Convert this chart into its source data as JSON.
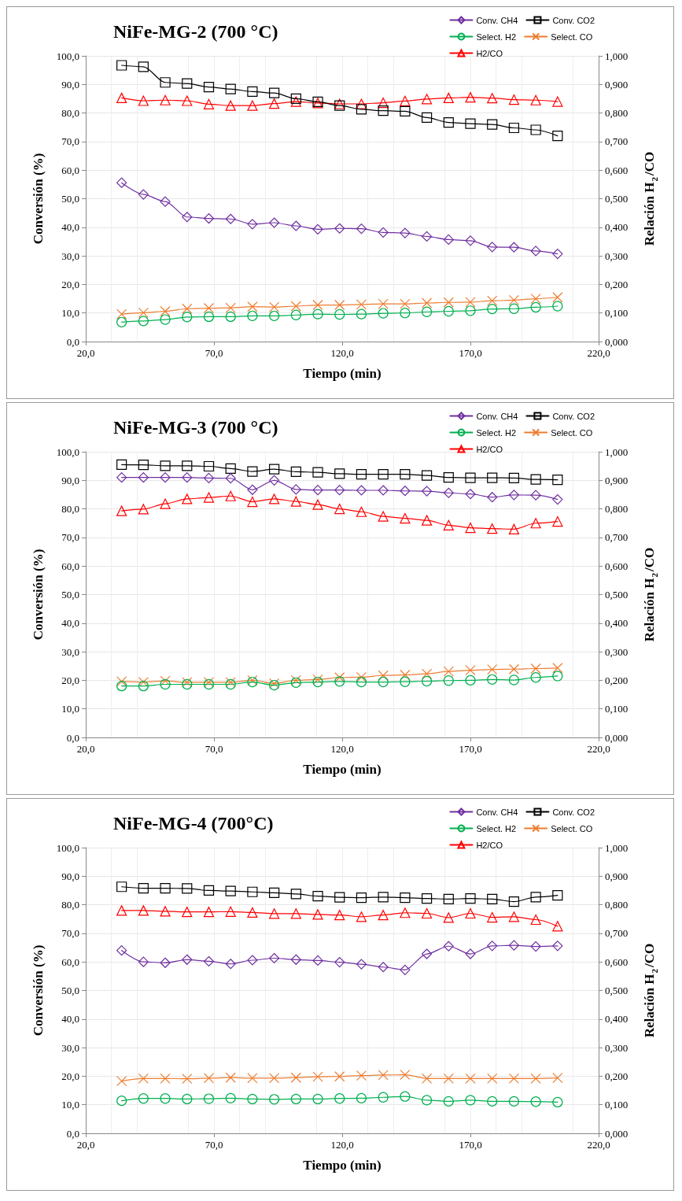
{
  "chart_data": [
    {
      "type": "line",
      "title": "NiFe-MG-2 (700 °C)",
      "xlabel": "Tiempo (min)",
      "ylabel": "Conversión (%)",
      "y2label": "Relación H$_{2}$/CO",
      "legend": "top right",
      "grid": true,
      "line_style": "solid",
      "x": [
        34,
        42.5,
        51,
        59.5,
        68,
        76.5,
        85,
        93.5,
        102,
        110.5,
        119,
        127.5,
        136,
        144.5,
        153,
        161.5,
        170,
        178.5,
        187,
        195.5,
        204
      ],
      "xlim": [
        20,
        220
      ],
      "xticks": [
        {
          "value": 20,
          "label": "20,0"
        },
        {
          "value": 70,
          "label": "70,0"
        },
        {
          "value": 120,
          "label": "120,0"
        },
        {
          "value": 170,
          "label": "170,0"
        },
        {
          "value": 220,
          "label": "220,0"
        }
      ],
      "ylim": [
        0,
        100
      ],
      "yticks": [
        {
          "value": 0,
          "label": "0,0"
        },
        {
          "value": 10,
          "label": "10,0"
        },
        {
          "value": 20,
          "label": "20,0"
        },
        {
          "value": 30,
          "label": "30,0"
        },
        {
          "value": 40,
          "label": "40,0"
        },
        {
          "value": 50,
          "label": "50,0"
        },
        {
          "value": 60,
          "label": "60,0"
        },
        {
          "value": 70,
          "label": "70,0"
        },
        {
          "value": 80,
          "label": "80,0"
        },
        {
          "value": 90,
          "label": "90,0"
        },
        {
          "value": 100,
          "label": "100,0"
        }
      ],
      "y2lim": [
        0,
        1
      ],
      "y2ticks": [
        {
          "value": 0,
          "label": "0,000"
        },
        {
          "value": 0.1,
          "label": "0,100"
        },
        {
          "value": 0.2,
          "label": "0,200"
        },
        {
          "value": 0.3,
          "label": "0,300"
        },
        {
          "value": 0.4,
          "label": "0,400"
        },
        {
          "value": 0.5,
          "label": "0,500"
        },
        {
          "value": 0.6,
          "label": "0,600"
        },
        {
          "value": 0.7,
          "label": "0,700"
        },
        {
          "value": 0.8,
          "label": "0,800"
        },
        {
          "value": 0.9,
          "label": "0,900"
        },
        {
          "value": 1,
          "label": "1,000"
        }
      ],
      "series": [
        {
          "name": "Conv. CH4",
          "color": "#7030a0",
          "marker": "diamond",
          "values": [
            55.6,
            51.5,
            49.0,
            43.6,
            43.1,
            42.9,
            41.1,
            41.6,
            40.5,
            39.3,
            39.6,
            39.5,
            38.2,
            38.0,
            36.8,
            35.7,
            35.3,
            33.1,
            33.0,
            31.7,
            30.7
          ]
        },
        {
          "name": "Conv. CO2",
          "color": "#000000",
          "marker": "square",
          "values": [
            96.7,
            96.2,
            90.7,
            90.3,
            89.1,
            88.4,
            87.5,
            87.0,
            85.0,
            83.9,
            82.6,
            81.3,
            80.8,
            80.6,
            78.4,
            76.7,
            76.3,
            76.0,
            74.8,
            74.1,
            72.0
          ]
        },
        {
          "name": "Select. H2",
          "color": "#00b050",
          "marker": "circle",
          "values": [
            6.8,
            7.2,
            7.7,
            8.6,
            8.7,
            8.7,
            9.0,
            9.0,
            9.3,
            9.6,
            9.5,
            9.6,
            9.9,
            10.0,
            10.4,
            10.6,
            10.8,
            11.4,
            11.5,
            12.0,
            12.4
          ]
        },
        {
          "name": "Select. CO",
          "color": "#ed7d31",
          "marker": "cross",
          "values": [
            9.6,
            10.1,
            10.6,
            11.5,
            11.7,
            11.8,
            12.2,
            12.1,
            12.4,
            12.8,
            12.8,
            13.0,
            13.2,
            13.2,
            13.5,
            13.7,
            13.8,
            14.3,
            14.5,
            15.0,
            15.5
          ]
        },
        {
          "name": "H2/CO",
          "color": "#ff0000",
          "marker": "triangle",
          "axis": "y2",
          "values": [
            0.853,
            0.843,
            0.845,
            0.843,
            0.831,
            0.826,
            0.826,
            0.833,
            0.84,
            0.835,
            0.832,
            0.832,
            0.836,
            0.842,
            0.849,
            0.853,
            0.855,
            0.852,
            0.847,
            0.845,
            0.84
          ]
        }
      ]
    },
    {
      "type": "line",
      "title": "NiFe-MG-3 (700 °C)",
      "xlabel": "Tiempo (min)",
      "ylabel": "Conversión (%)",
      "y2label": "Relación H$_{2}$/CO",
      "legend": "top right",
      "grid": true,
      "line_style": "solid",
      "x": [
        34,
        42.5,
        51,
        59.5,
        68,
        76.5,
        85,
        93.5,
        102,
        110.5,
        119,
        127.5,
        136,
        144.5,
        153,
        161.5,
        170,
        178.5,
        187,
        195.5,
        204
      ],
      "xlim": [
        20,
        220
      ],
      "xticks": [
        {
          "value": 20,
          "label": "20,0"
        },
        {
          "value": 70,
          "label": "70,0"
        },
        {
          "value": 120,
          "label": "120,0"
        },
        {
          "value": 170,
          "label": "170,0"
        },
        {
          "value": 220,
          "label": "220,0"
        }
      ],
      "ylim": [
        0,
        100
      ],
      "yticks": [
        {
          "value": 0,
          "label": "0,0"
        },
        {
          "value": 10,
          "label": "10,0"
        },
        {
          "value": 20,
          "label": "20,0"
        },
        {
          "value": 30,
          "label": "30,0"
        },
        {
          "value": 40,
          "label": "40,0"
        },
        {
          "value": 50,
          "label": "50,0"
        },
        {
          "value": 60,
          "label": "60,0"
        },
        {
          "value": 70,
          "label": "70,0"
        },
        {
          "value": 80,
          "label": "80,0"
        },
        {
          "value": 90,
          "label": "90,0"
        },
        {
          "value": 100,
          "label": "100,0"
        }
      ],
      "y2lim": [
        0,
        1
      ],
      "y2ticks": [
        {
          "value": 0,
          "label": "0,000"
        },
        {
          "value": 0.1,
          "label": "0,100"
        },
        {
          "value": 0.2,
          "label": "0,200"
        },
        {
          "value": 0.3,
          "label": "0,300"
        },
        {
          "value": 0.4,
          "label": "0,400"
        },
        {
          "value": 0.5,
          "label": "0,500"
        },
        {
          "value": 0.6,
          "label": "0,600"
        },
        {
          "value": 0.7,
          "label": "0,700"
        },
        {
          "value": 0.8,
          "label": "0,800"
        },
        {
          "value": 0.9,
          "label": "0,900"
        },
        {
          "value": 1,
          "label": "1,000"
        }
      ],
      "series": [
        {
          "name": "Conv. CH4",
          "color": "#7030a0",
          "marker": "diamond",
          "values": [
            91.0,
            91.0,
            91.0,
            91.0,
            90.8,
            90.7,
            86.7,
            90.0,
            86.8,
            86.6,
            86.6,
            86.5,
            86.5,
            86.3,
            86.2,
            85.6,
            85.2,
            84.1,
            84.9,
            84.8,
            83.3
          ]
        },
        {
          "name": "Conv. CO2",
          "color": "#000000",
          "marker": "square",
          "values": [
            95.5,
            95.4,
            95.1,
            95.1,
            94.9,
            94.1,
            93.1,
            93.9,
            93.0,
            92.8,
            92.3,
            92.1,
            92.1,
            92.1,
            91.7,
            91.0,
            90.9,
            90.9,
            90.8,
            90.3,
            90.2
          ]
        },
        {
          "name": "Select. H2",
          "color": "#00b050",
          "marker": "circle",
          "values": [
            18.0,
            18.0,
            18.6,
            18.6,
            18.6,
            18.6,
            19.4,
            18.3,
            19.2,
            19.4,
            19.6,
            19.4,
            19.4,
            19.5,
            19.7,
            19.9,
            20.0,
            20.3,
            20.1,
            21.0,
            21.5
          ]
        },
        {
          "name": "Select. CO",
          "color": "#ed7d31",
          "marker": "cross",
          "values": [
            19.6,
            19.4,
            19.8,
            19.3,
            19.3,
            19.3,
            20.0,
            18.9,
            20.0,
            20.3,
            21.0,
            21.1,
            21.7,
            21.9,
            22.3,
            23.1,
            23.5,
            23.8,
            23.9,
            24.1,
            24.3
          ]
        },
        {
          "name": "H2/CO",
          "color": "#ff0000",
          "marker": "triangle",
          "axis": "y2",
          "values": [
            0.793,
            0.799,
            0.818,
            0.835,
            0.84,
            0.845,
            0.825,
            0.835,
            0.826,
            0.815,
            0.8,
            0.79,
            0.774,
            0.767,
            0.76,
            0.743,
            0.734,
            0.731,
            0.729,
            0.75,
            0.756
          ]
        }
      ]
    },
    {
      "type": "line",
      "title": "NiFe-MG-4 (700°C)",
      "xlabel": "Tiempo (min)",
      "ylabel": "Conversión (%)",
      "y2label": "Relación H$_{2}$/CO",
      "legend": "top right",
      "grid": true,
      "line_style": "solid",
      "x": [
        34,
        42.5,
        51,
        59.5,
        68,
        76.5,
        85,
        93.5,
        102,
        110.5,
        119,
        127.5,
        136,
        144.5,
        153,
        161.5,
        170,
        178.5,
        187,
        195.5,
        204
      ],
      "xlim": [
        20,
        220
      ],
      "xticks": [
        {
          "value": 20,
          "label": "20,0"
        },
        {
          "value": 70,
          "label": "70,0"
        },
        {
          "value": 120,
          "label": "120,0"
        },
        {
          "value": 170,
          "label": "170,0"
        },
        {
          "value": 220,
          "label": "220,0"
        }
      ],
      "ylim": [
        0,
        100
      ],
      "yticks": [
        {
          "value": 0,
          "label": "0,0"
        },
        {
          "value": 10,
          "label": "10,0"
        },
        {
          "value": 20,
          "label": "20,0"
        },
        {
          "value": 30,
          "label": "30,0"
        },
        {
          "value": 40,
          "label": "40,0"
        },
        {
          "value": 50,
          "label": "50,0"
        },
        {
          "value": 60,
          "label": "60,0"
        },
        {
          "value": 70,
          "label": "70,0"
        },
        {
          "value": 80,
          "label": "80,0"
        },
        {
          "value": 90,
          "label": "90,0"
        },
        {
          "value": 100,
          "label": "100,0"
        }
      ],
      "y2lim": [
        0,
        1
      ],
      "y2ticks": [
        {
          "value": 0,
          "label": "0,000"
        },
        {
          "value": 0.1,
          "label": "0,100"
        },
        {
          "value": 0.2,
          "label": "0,200"
        },
        {
          "value": 0.3,
          "label": "0,300"
        },
        {
          "value": 0.4,
          "label": "0,400"
        },
        {
          "value": 0.5,
          "label": "0,500"
        },
        {
          "value": 0.6,
          "label": "0,600"
        },
        {
          "value": 0.7,
          "label": "0,700"
        },
        {
          "value": 0.8,
          "label": "0,800"
        },
        {
          "value": 0.9,
          "label": "0,900"
        },
        {
          "value": 1,
          "label": "1,000"
        }
      ],
      "series": [
        {
          "name": "Conv. CH4",
          "color": "#7030a0",
          "marker": "diamond",
          "values": [
            64.0,
            60.0,
            59.7,
            60.8,
            60.2,
            59.3,
            60.6,
            61.3,
            60.8,
            60.5,
            59.9,
            59.2,
            58.2,
            57.2,
            62.8,
            65.5,
            62.8,
            65.6,
            65.8,
            65.4,
            65.6
          ]
        },
        {
          "name": "Conv. CO2",
          "color": "#000000",
          "marker": "square",
          "values": [
            86.3,
            85.8,
            85.8,
            85.7,
            85.0,
            84.8,
            84.5,
            84.2,
            83.8,
            83.0,
            82.6,
            82.5,
            82.7,
            82.5,
            82.2,
            82.0,
            82.2,
            82.0,
            81.1,
            82.7,
            83.3
          ]
        },
        {
          "name": "Select. H2",
          "color": "#00b050",
          "marker": "circle",
          "values": [
            11.4,
            12.2,
            12.2,
            12.0,
            12.1,
            12.3,
            12.0,
            11.9,
            12.0,
            12.0,
            12.2,
            12.3,
            12.6,
            12.9,
            11.6,
            11.2,
            11.6,
            11.2,
            11.2,
            11.1,
            10.9
          ]
        },
        {
          "name": "Select. CO",
          "color": "#ed7d31",
          "marker": "cross",
          "values": [
            18.3,
            19.2,
            19.2,
            19.1,
            19.3,
            19.5,
            19.3,
            19.3,
            19.5,
            19.8,
            19.9,
            20.2,
            20.4,
            20.5,
            19.2,
            19.2,
            19.2,
            19.2,
            19.2,
            19.2,
            19.4
          ]
        },
        {
          "name": "H2/CO",
          "color": "#ff0000",
          "marker": "triangle",
          "axis": "y2",
          "values": [
            0.78,
            0.78,
            0.777,
            0.775,
            0.775,
            0.776,
            0.773,
            0.769,
            0.769,
            0.766,
            0.764,
            0.758,
            0.764,
            0.772,
            0.77,
            0.755,
            0.77,
            0.756,
            0.758,
            0.748,
            0.725
          ]
        }
      ]
    }
  ]
}
